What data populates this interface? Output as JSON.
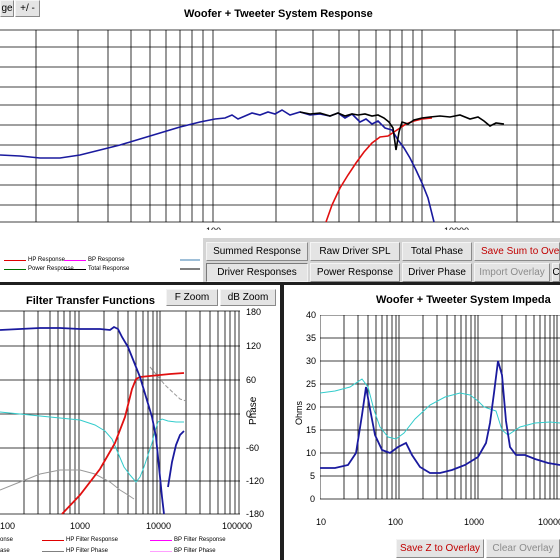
{
  "top_panel": {
    "title": "Woofer + Tweeter    System Response",
    "corner_buttons": [
      "ge",
      "+/ -"
    ],
    "x_ticks": [
      "100",
      "10000"
    ],
    "legend": [
      {
        "label": "HP Response",
        "color": "#e00000"
      },
      {
        "label": "BP Response",
        "color": "#ff00ff"
      },
      {
        "label": "Power Response",
        "color": "#007000"
      },
      {
        "label": "Total Response",
        "color": "#000000"
      }
    ],
    "buttons_row1": [
      "Summed Response",
      "Raw Driver SPL",
      "Total Phase",
      "Save Sum to Over"
    ],
    "buttons_row2": [
      "Driver Responses",
      "Power Response",
      "Driver Phase",
      "Import Overlay",
      "C"
    ]
  },
  "left_panel": {
    "title": "Filter Transfer Functions",
    "buttons": [
      "F Zoom",
      "dB Zoom"
    ],
    "right_axis_label": "Phase",
    "right_ticks": [
      "180",
      "120",
      "60",
      "0",
      "-60",
      "-120",
      "-180"
    ],
    "x_ticks": [
      "100",
      "1000",
      "10000",
      "100000"
    ],
    "legend": [
      {
        "label": "onse",
        "color": "#0000c0"
      },
      {
        "label": "HP Filter Response",
        "color": "#e00000"
      },
      {
        "label": "BP Filter Response",
        "color": "#ff00ff"
      },
      {
        "label": "ase",
        "color": "#00c0c0"
      },
      {
        "label": "HP Filter Phase",
        "color": "#808080"
      },
      {
        "label": "BP Filter Phase",
        "color": "#ffa0ff"
      }
    ]
  },
  "right_panel": {
    "title": "Woofer + Tweeter    System Impeda",
    "y_axis_label": "Ohms",
    "y_ticks": [
      "40",
      "35",
      "30",
      "25",
      "20",
      "15",
      "10",
      "5",
      "0"
    ],
    "x_ticks": [
      "10",
      "100",
      "1000",
      "10000"
    ],
    "buttons": [
      "Save Z to Overlay",
      "Clear Overlay"
    ]
  },
  "colors": {
    "woofer": "#1a1a9e",
    "tweeter": "#e01010",
    "total": "#000000",
    "cyan": "#33cccc",
    "grey": "#999999"
  }
}
